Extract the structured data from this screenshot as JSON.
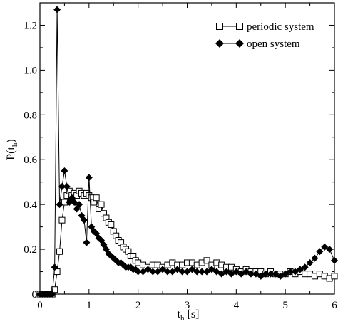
{
  "chart_data": {
    "type": "scatter",
    "title": "",
    "xlabel": {
      "main": "t",
      "sub": "h",
      "unit": " [s]"
    },
    "ylabel": {
      "main": "P(t",
      "sub": "h",
      "close": ")"
    },
    "xlim": [
      0,
      6
    ],
    "ylim": [
      0,
      1.3
    ],
    "xticks": [
      0,
      1,
      2,
      3,
      4,
      5,
      6
    ],
    "xtick_labels": [
      "0",
      "1",
      "2",
      "3",
      "4",
      "5",
      "6"
    ],
    "yticks": [
      0,
      0.2,
      0.4,
      0.6,
      0.8,
      1.0,
      1.2
    ],
    "ytick_labels": [
      "0",
      "0.2",
      "0.4",
      "0.6",
      "0.8",
      "1.0",
      "1.2"
    ],
    "grid": false,
    "legend_position": "top-right",
    "series": [
      {
        "name": "periodic system",
        "marker": "open-square",
        "color": "#000000",
        "x": [
          0.0,
          0.05,
          0.1,
          0.15,
          0.2,
          0.25,
          0.3,
          0.35,
          0.4,
          0.45,
          0.5,
          0.55,
          0.6,
          0.65,
          0.7,
          0.75,
          0.8,
          0.85,
          0.9,
          0.95,
          1.0,
          1.05,
          1.1,
          1.15,
          1.2,
          1.25,
          1.3,
          1.35,
          1.4,
          1.45,
          1.5,
          1.55,
          1.6,
          1.65,
          1.7,
          1.75,
          1.8,
          1.85,
          1.9,
          1.95,
          2.0,
          2.1,
          2.2,
          2.3,
          2.4,
          2.5,
          2.6,
          2.7,
          2.8,
          2.9,
          3.0,
          3.1,
          3.2,
          3.3,
          3.4,
          3.5,
          3.6,
          3.7,
          3.8,
          3.9,
          4.0,
          4.1,
          4.2,
          4.3,
          4.4,
          4.5,
          4.6,
          4.7,
          4.8,
          4.9,
          5.0,
          5.1,
          5.2,
          5.3,
          5.4,
          5.5,
          5.6,
          5.7,
          5.8,
          5.9,
          6.0
        ],
        "y": [
          0.0,
          0.0,
          0.0,
          0.0,
          0.0,
          0.0,
          0.02,
          0.1,
          0.19,
          0.33,
          0.41,
          0.44,
          0.46,
          0.44,
          0.45,
          0.44,
          0.46,
          0.45,
          0.44,
          0.45,
          0.44,
          0.43,
          0.41,
          0.43,
          0.38,
          0.4,
          0.36,
          0.34,
          0.32,
          0.31,
          0.28,
          0.26,
          0.24,
          0.23,
          0.21,
          0.2,
          0.19,
          0.17,
          0.17,
          0.15,
          0.14,
          0.13,
          0.12,
          0.13,
          0.13,
          0.12,
          0.13,
          0.14,
          0.13,
          0.13,
          0.14,
          0.14,
          0.13,
          0.14,
          0.15,
          0.13,
          0.14,
          0.13,
          0.12,
          0.12,
          0.11,
          0.1,
          0.11,
          0.1,
          0.1,
          0.1,
          0.09,
          0.1,
          0.09,
          0.09,
          0.09,
          0.1,
          0.09,
          0.1,
          0.09,
          0.09,
          0.08,
          0.09,
          0.08,
          0.07,
          0.08
        ]
      },
      {
        "name": "open system",
        "marker": "filled-diamond",
        "color": "#000000",
        "x": [
          0.0,
          0.05,
          0.1,
          0.15,
          0.2,
          0.25,
          0.3,
          0.35,
          0.4,
          0.45,
          0.5,
          0.55,
          0.6,
          0.65,
          0.7,
          0.75,
          0.8,
          0.85,
          0.9,
          0.95,
          1.0,
          1.05,
          1.1,
          1.15,
          1.2,
          1.25,
          1.3,
          1.35,
          1.4,
          1.45,
          1.5,
          1.55,
          1.6,
          1.65,
          1.7,
          1.75,
          1.8,
          1.85,
          1.9,
          1.95,
          2.0,
          2.1,
          2.2,
          2.3,
          2.4,
          2.5,
          2.6,
          2.7,
          2.8,
          2.9,
          3.0,
          3.1,
          3.2,
          3.3,
          3.4,
          3.5,
          3.6,
          3.7,
          3.8,
          3.9,
          4.0,
          4.1,
          4.2,
          4.3,
          4.4,
          4.5,
          4.6,
          4.7,
          4.8,
          4.9,
          5.0,
          5.1,
          5.2,
          5.3,
          5.4,
          5.5,
          5.6,
          5.7,
          5.8,
          5.9,
          6.0
        ],
        "y": [
          0.0,
          0.0,
          0.0,
          0.0,
          0.0,
          0.0,
          0.12,
          1.27,
          0.4,
          0.48,
          0.55,
          0.48,
          0.41,
          0.43,
          0.41,
          0.38,
          0.4,
          0.35,
          0.33,
          0.23,
          0.52,
          0.3,
          0.28,
          0.27,
          0.25,
          0.24,
          0.22,
          0.2,
          0.18,
          0.17,
          0.16,
          0.15,
          0.14,
          0.14,
          0.13,
          0.12,
          0.12,
          0.12,
          0.11,
          0.11,
          0.1,
          0.1,
          0.11,
          0.1,
          0.1,
          0.11,
          0.1,
          0.1,
          0.11,
          0.1,
          0.1,
          0.11,
          0.1,
          0.1,
          0.1,
          0.11,
          0.1,
          0.09,
          0.1,
          0.09,
          0.1,
          0.09,
          0.1,
          0.09,
          0.09,
          0.08,
          0.09,
          0.09,
          0.09,
          0.08,
          0.09,
          0.1,
          0.1,
          0.11,
          0.12,
          0.14,
          0.16,
          0.19,
          0.21,
          0.2,
          0.15
        ]
      }
    ]
  }
}
